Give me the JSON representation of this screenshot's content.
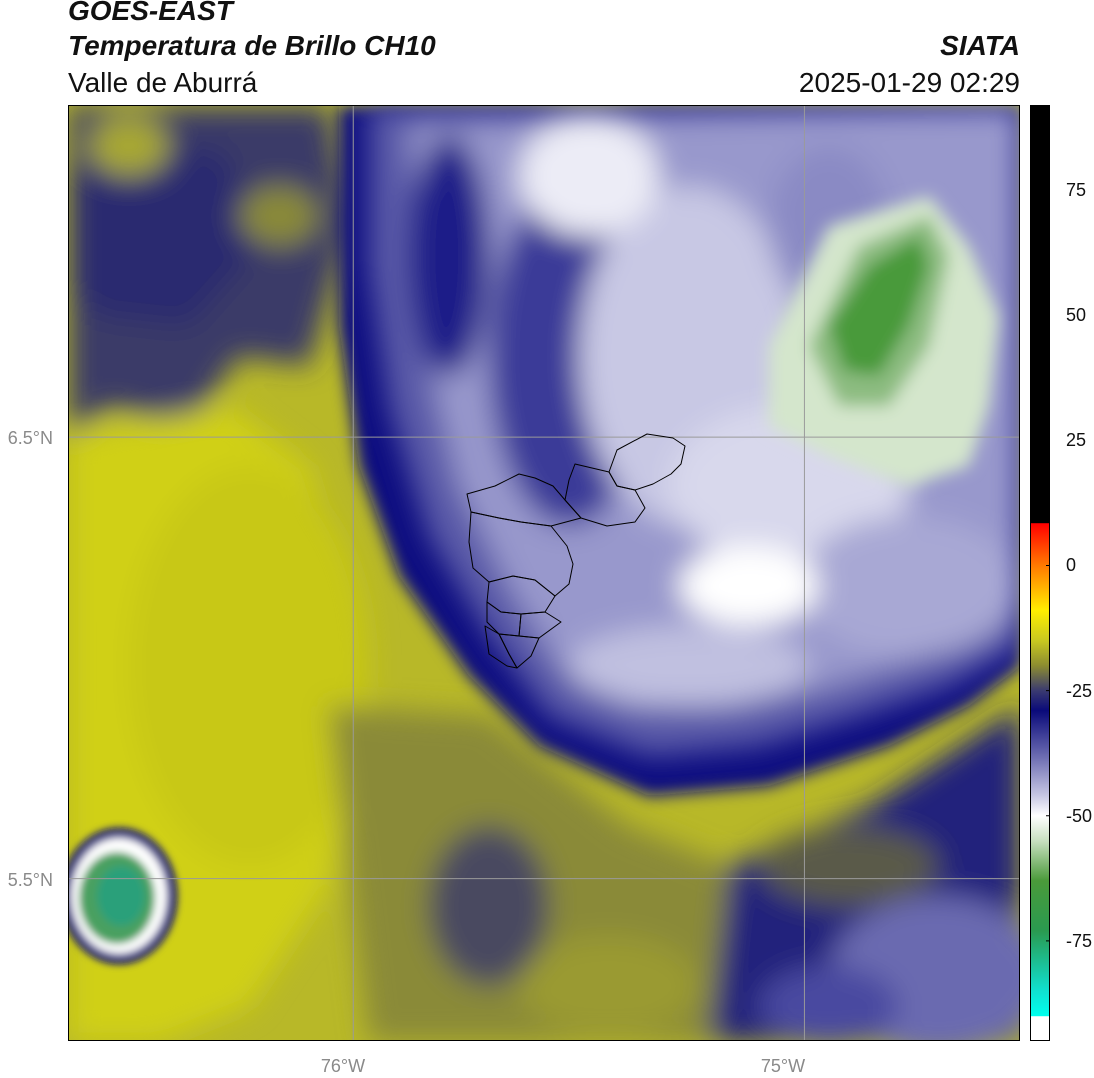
{
  "header": {
    "title": "GOES-EAST",
    "subtitle": "Temperatura de Brillo CH10",
    "region": "Valle de Aburrá",
    "organization": "SIATA",
    "datetime": "2025-01-29 02:29"
  },
  "map": {
    "extent": {
      "lon_min": -76.63,
      "lon_max": -74.52,
      "lat_min": 5.13,
      "lat_max": 7.25
    },
    "lat_lines": [
      {
        "value": 6.5,
        "label": "6.5°N"
      },
      {
        "value": 5.5,
        "label": "5.5°N"
      }
    ],
    "lon_lines": [
      {
        "value": -76.0,
        "label": "76°W"
      },
      {
        "value": -75.0,
        "label": "75°W"
      }
    ],
    "gridline_color": "#9a9a9a"
  },
  "colorbar": {
    "min": -95,
    "max": 92,
    "ticks": [
      {
        "value": 75,
        "label": "75"
      },
      {
        "value": 50,
        "label": "50"
      },
      {
        "value": 25,
        "label": "25"
      },
      {
        "value": 0,
        "label": "0"
      },
      {
        "value": -25,
        "label": "-25"
      },
      {
        "value": -50,
        "label": "-50"
      },
      {
        "value": -75,
        "label": "-75"
      }
    ],
    "stops": [
      {
        "value": 92,
        "color": "#000000"
      },
      {
        "value": 8.5,
        "color": "#000000"
      },
      {
        "value": 8.4,
        "color": "#ff0000"
      },
      {
        "value": 0,
        "color": "#ff7a00"
      },
      {
        "value": -9,
        "color": "#ffee00"
      },
      {
        "value": -15,
        "color": "#c8c820"
      },
      {
        "value": -20,
        "color": "#8c8c30"
      },
      {
        "value": -25,
        "color": "#3a3a70"
      },
      {
        "value": -29,
        "color": "#0a0a7a"
      },
      {
        "value": -38,
        "color": "#6a6ab0"
      },
      {
        "value": -46,
        "color": "#c8c8e4"
      },
      {
        "value": -50,
        "color": "#ffffff"
      },
      {
        "value": -55,
        "color": "#c8e0c0"
      },
      {
        "value": -63,
        "color": "#4a9a3a"
      },
      {
        "value": -73,
        "color": "#2a9a50"
      },
      {
        "value": -85,
        "color": "#10e0d0"
      },
      {
        "value": -90,
        "color": "#00ffee"
      },
      {
        "value": -90.1,
        "color": "#ffffff"
      },
      {
        "value": -95,
        "color": "#ffffff"
      }
    ]
  }
}
